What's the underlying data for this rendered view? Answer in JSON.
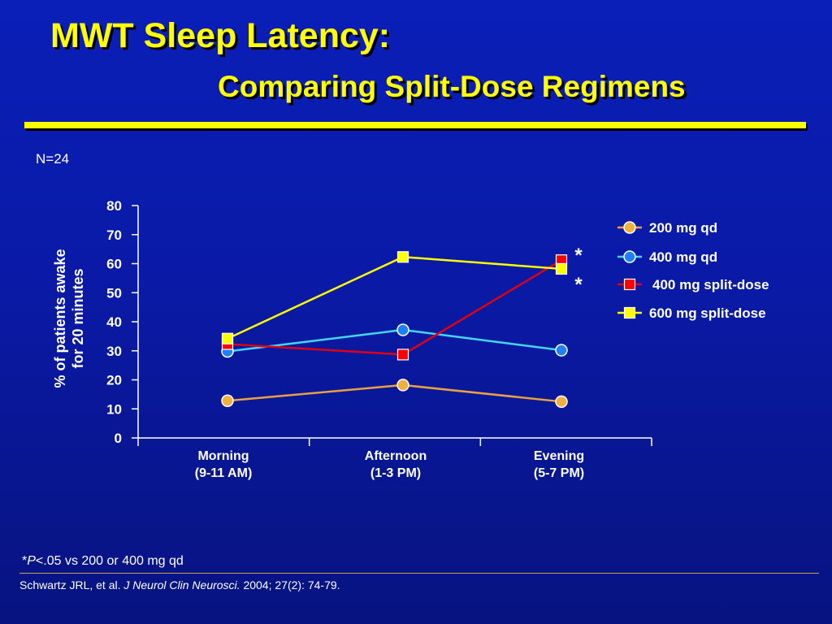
{
  "slide": {
    "title_line1": "MWT Sleep Latency:",
    "title_line2": "Comparing Split-Dose Regimens",
    "n_label": "N=24",
    "footnote_star": "*",
    "footnote_p": "P",
    "footnote_rest": "<.05 vs 200 or 400 mg qd",
    "citation_authors": "Schwartz JRL, et al. ",
    "citation_journal": "J Neurol Clin Neurosci.",
    "citation_rest": " 2004; 27(2): 74-79."
  },
  "chart_data": {
    "type": "line",
    "categories": [
      "Morning\n(9-11 AM)",
      "Afternoon\n(1-3 PM)",
      "Evening\n(5-7 PM)"
    ],
    "ylabel_line1": "% of patients awake",
    "ylabel_line2": "for 20 minutes",
    "ylim": [
      0,
      80
    ],
    "yticks": [
      0,
      10,
      20,
      30,
      40,
      50,
      60,
      70,
      80
    ],
    "grid": false,
    "legend_position": "right",
    "series": [
      {
        "name": "200 mg qd",
        "values": [
          12.8,
          18.2,
          12.5
        ],
        "color": "#f0b040",
        "line_color": "#e8a040",
        "marker": "circle"
      },
      {
        "name": "400 mg qd",
        "values": [
          29.8,
          37.2,
          30.2
        ],
        "color": "#1e80ff",
        "line_color": "#40d8ff",
        "marker": "circle"
      },
      {
        "name": "400 mg split-dose",
        "values": [
          32.3,
          28.7,
          61.2
        ],
        "color": "#ff0000",
        "line_color": "#e00010",
        "marker": "square"
      },
      {
        "name": "600 mg split-dose",
        "values": [
          34.2,
          62.3,
          58.2
        ],
        "color": "#ffff00",
        "line_color": "#ffff00",
        "marker": "square"
      }
    ],
    "annotations": [
      "*",
      "*"
    ]
  }
}
